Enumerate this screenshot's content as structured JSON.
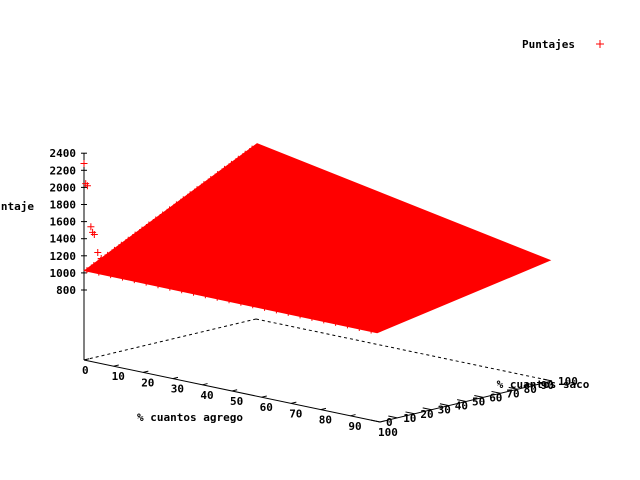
{
  "chart_data": {
    "type": "scatter",
    "title": "",
    "xlabel": "% cuantos agrego",
    "ylabel": "% cuantos saco",
    "zlabel": "Puntaje",
    "xlim": [
      0,
      100
    ],
    "ylim": [
      0,
      100
    ],
    "zlim": [
      800,
      2400
    ],
    "x_ticks": [
      "0",
      "10",
      "20",
      "30",
      "40",
      "50",
      "60",
      "70",
      "80",
      "90",
      "100"
    ],
    "y_ticks": [
      "0",
      "10",
      "20",
      "30",
      "40",
      "50",
      "60",
      "70",
      "80",
      "90",
      "100"
    ],
    "z_ticks": [
      "800",
      "1000",
      "1200",
      "1400",
      "1600",
      "1800",
      "2000",
      "2200",
      "2400"
    ],
    "legend_position": "top-right",
    "grid": false,
    "series": [
      {
        "name": "Puntajes",
        "color": "#ff0000",
        "marker": "plus",
        "surface": {
          "x_range": [
            1,
            99
          ],
          "y_range": [
            0,
            99
          ],
          "corners": [
            {
              "x": 1,
              "y": 0,
              "z": 1040
            },
            {
              "x": 99,
              "y": 0,
              "z": 1030
            },
            {
              "x": 1,
              "y": 99,
              "z": 2030
            },
            {
              "x": 99,
              "y": 99,
              "z": 1390
            }
          ]
        },
        "points": [
          {
            "x": 0,
            "y": 0,
            "z": 2280
          },
          {
            "x": 0,
            "y": 1,
            "z": 2040
          },
          {
            "x": 0,
            "y": 2,
            "z": 2010
          },
          {
            "x": 0,
            "y": 4,
            "z": 1520
          },
          {
            "x": 0,
            "y": 5,
            "z": 1450
          },
          {
            "x": 0,
            "y": 6,
            "z": 1420
          },
          {
            "x": 0,
            "y": 8,
            "z": 1200
          },
          {
            "x": 0,
            "y": 10,
            "z": 1120
          },
          {
            "x": 0,
            "y": 14,
            "z": 1080
          }
        ]
      }
    ]
  }
}
